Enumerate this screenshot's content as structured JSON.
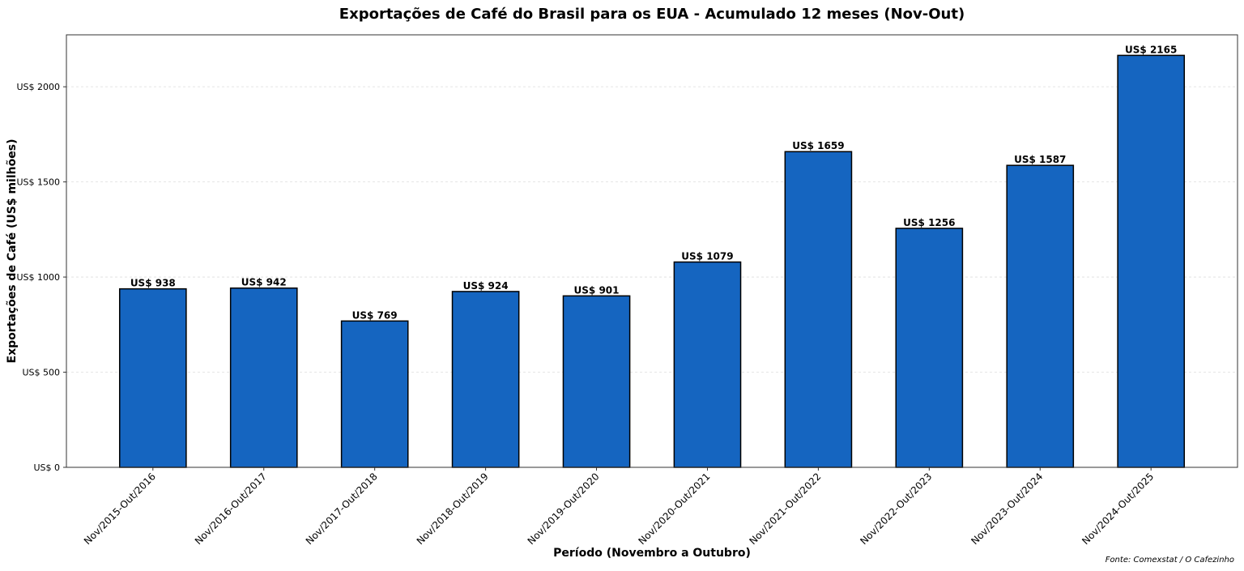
{
  "chart_data": {
    "type": "bar",
    "title": "Exportações de Café do Brasil para os EUA - Acumulado 12 meses (Nov-Out)",
    "xlabel": "Período (Novembro a Outubro)",
    "ylabel": "Exportações de Café (US$ milhões)",
    "source": "Fonte: Comexstat / O Cafezinho",
    "categories": [
      "Nov/2015-Out/2016",
      "Nov/2016-Out/2017",
      "Nov/2017-Out/2018",
      "Nov/2018-Out/2019",
      "Nov/2019-Out/2020",
      "Nov/2020-Out/2021",
      "Nov/2021-Out/2022",
      "Nov/2022-Out/2023",
      "Nov/2023-Out/2024",
      "Nov/2024-Out/2025"
    ],
    "values": [
      938,
      942,
      769,
      924,
      901,
      1079,
      1659,
      1256,
      1587,
      2165
    ],
    "data_labels": [
      "US$ 938",
      "US$ 942",
      "US$ 769",
      "US$ 924",
      "US$ 901",
      "US$ 1079",
      "US$ 1659",
      "US$ 1256",
      "US$ 1587",
      "US$ 2165"
    ],
    "yticks": [
      0,
      500,
      1000,
      1500,
      2000
    ],
    "ytick_labels": [
      "US$ 0",
      "US$ 500",
      "US$ 1000",
      "US$ 1500",
      "US$ 2000"
    ],
    "ylim": [
      0,
      2273
    ],
    "grid": "horizontal, light dashed",
    "bar_color": "#1565C0",
    "bar_edge_color": "#000000"
  }
}
